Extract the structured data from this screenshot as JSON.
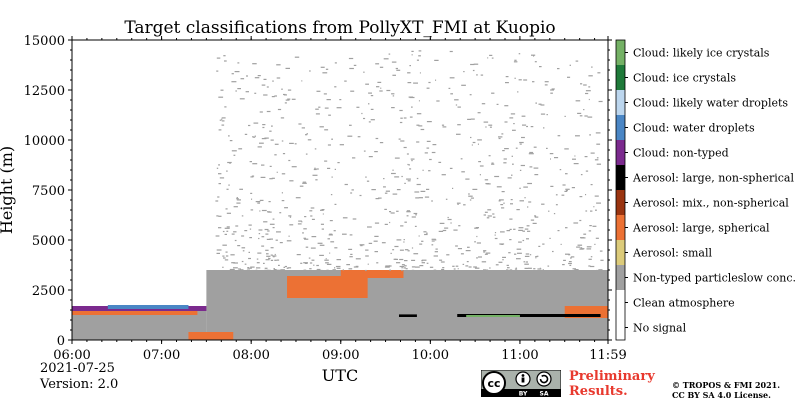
{
  "chart_data": {
    "type": "heatmap",
    "title": "Target classifications from PollyXT_FMI at Kuopio",
    "xlabel": "UTC",
    "ylabel": "Height (m)",
    "x_ticks": [
      "06:00",
      "07:00",
      "08:00",
      "09:00",
      "10:00",
      "11:00",
      "11:59"
    ],
    "x_range_hours": [
      6.0,
      11.983
    ],
    "y_ticks": [
      0,
      2500,
      5000,
      7500,
      10000,
      12500,
      15000
    ],
    "ylim": [
      0,
      15000
    ],
    "legend_placement": "right",
    "classes": [
      {
        "label": "Cloud: likely ice crystals",
        "color": "#74b165"
      },
      {
        "label": "Cloud: ice crystals",
        "color": "#1f7a3a"
      },
      {
        "label": "Cloud: likely water droplets",
        "color": "#bcd6ee"
      },
      {
        "label": "Cloud: water droplets",
        "color": "#4a86c5"
      },
      {
        "label": "Cloud: non-typed",
        "color": "#7b2a8e"
      },
      {
        "label": "Aerosol: large, non-spherical",
        "color": "#000000"
      },
      {
        "label": "Aerosol: mix., non-spherical",
        "color": "#9a3410"
      },
      {
        "label": "Aerosol: large, spherical",
        "color": "#ec7134"
      },
      {
        "label": "Aerosol: small",
        "color": "#dccb7a"
      },
      {
        "label": "Non-typed particleslow conc.",
        "color": "#a0a0a0"
      },
      {
        "label": "Clean atmosphere",
        "color": "#ffffff"
      },
      {
        "label": "No signal",
        "color": "#ffffff"
      }
    ],
    "layers": [
      {
        "class": "Non-typed particleslow conc.",
        "start_h": 6.0,
        "end_h": 7.5,
        "bottom_m": 0,
        "top_m": 1700
      },
      {
        "class": "Non-typed particleslow conc.",
        "start_h": 7.5,
        "end_h": 11.98,
        "bottom_m": 0,
        "top_m": 3500
      },
      {
        "class": "Cloud: non-typed",
        "start_h": 6.0,
        "end_h": 7.5,
        "bottom_m": 1450,
        "top_m": 1700
      },
      {
        "class": "Cloud: water droplets",
        "start_h": 6.4,
        "end_h": 7.3,
        "bottom_m": 1550,
        "top_m": 1750
      },
      {
        "class": "Aerosol: large, spherical",
        "start_h": 6.0,
        "end_h": 7.4,
        "bottom_m": 1250,
        "top_m": 1450
      },
      {
        "class": "Aerosol: large, spherical",
        "start_h": 8.4,
        "end_h": 9.3,
        "bottom_m": 2100,
        "top_m": 3200
      },
      {
        "class": "Aerosol: large, spherical",
        "start_h": 9.0,
        "end_h": 9.7,
        "bottom_m": 3100,
        "top_m": 3500
      },
      {
        "class": "Aerosol: large, spherical",
        "start_h": 7.3,
        "end_h": 7.8,
        "bottom_m": 30,
        "top_m": 400
      },
      {
        "class": "Aerosol: large, spherical",
        "start_h": 11.5,
        "end_h": 11.98,
        "bottom_m": 1100,
        "top_m": 1700
      },
      {
        "class": "Aerosol: large, non-spherical",
        "start_h": 10.3,
        "end_h": 11.9,
        "bottom_m": 1150,
        "top_m": 1300
      },
      {
        "class": "Aerosol: large, non-spherical",
        "start_h": 9.65,
        "end_h": 9.85,
        "bottom_m": 1150,
        "top_m": 1280
      },
      {
        "class": "Cloud: likely ice crystals",
        "start_h": 10.4,
        "end_h": 11.0,
        "bottom_m": 1150,
        "top_m": 1250
      },
      {
        "class": "Non-typed particleslow conc.",
        "start_h": 7.6,
        "end_h": 11.9,
        "bottom_m": 3500,
        "top_m": 14500,
        "sparse": true
      }
    ]
  },
  "meta": {
    "date": "2021-07-25",
    "version": "Version: 2.0",
    "preliminary_line1": "Preliminary",
    "preliminary_line2": "Results.",
    "copyright_line1": "© TROPOS & FMI 2021.",
    "copyright_line2": "CC BY SA 4.0 License.",
    "cc_badge": {
      "cc": "cc",
      "by": "BY",
      "sa": "SA"
    }
  },
  "icons": {
    "license_badge": "cc-by-sa-icon"
  }
}
